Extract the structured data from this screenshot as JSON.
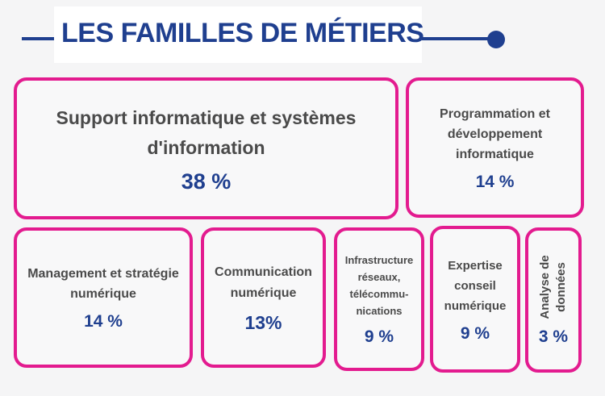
{
  "title": "LES FAMILLES DE MÉTIERS",
  "colors": {
    "accent": "#1f3f8f",
    "border": "#e31b8f"
  },
  "cards": [
    {
      "label": "Support informatique et systèmes d'information",
      "value": "38 %"
    },
    {
      "label": "Programmation et développement informatique",
      "value": "14 %"
    },
    {
      "label": "Management et stratégie numérique",
      "value": "14 %"
    },
    {
      "label": "Communication numérique",
      "value": "13%"
    },
    {
      "label": "Infrastructure réseaux, télécommu-nications",
      "value": "9 %"
    },
    {
      "label": "Expertise conseil numérique",
      "value": "9 %"
    },
    {
      "label": "Analyse de données",
      "value": "3 %"
    }
  ]
}
